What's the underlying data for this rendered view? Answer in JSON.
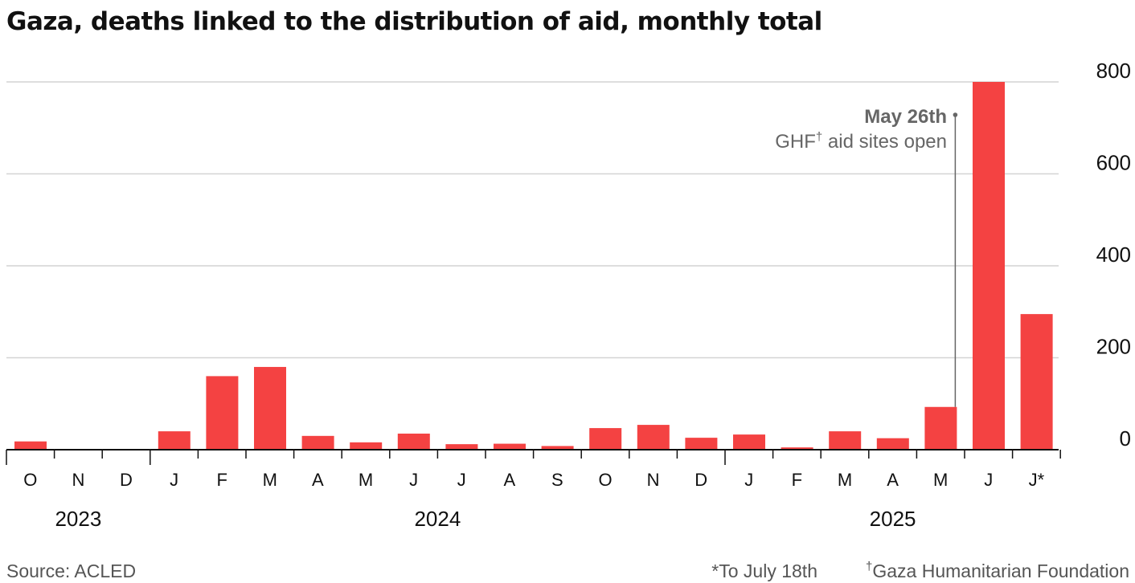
{
  "chart_data": {
    "type": "bar",
    "title": "Gaza, deaths linked to the distribution of aid, monthly total",
    "xlabel": "",
    "ylabel": "",
    "ylim": [
      0,
      800
    ],
    "yticks": [
      0,
      200,
      400,
      600,
      800
    ],
    "grid": true,
    "color": "#f44242",
    "categories": [
      "O",
      "N",
      "D",
      "J",
      "F",
      "M",
      "A",
      "M",
      "J",
      "J",
      "A",
      "S",
      "O",
      "N",
      "D",
      "J",
      "F",
      "M",
      "A",
      "M",
      "J",
      "J*"
    ],
    "values": [
      18,
      0,
      0,
      40,
      160,
      180,
      30,
      16,
      35,
      12,
      13,
      8,
      47,
      54,
      26,
      33,
      5,
      40,
      25,
      93,
      800,
      295
    ],
    "years": [
      {
        "label": "2023",
        "start": 0,
        "end": 2
      },
      {
        "label": "2024",
        "start": 3,
        "end": 14
      },
      {
        "label": "2025",
        "start": 15,
        "end": 21
      }
    ],
    "annotation": {
      "title": "May 26th",
      "text_pre": "GHF",
      "text_sup": "†",
      "text_post": " aid sites open",
      "category_index": 19,
      "value": 93
    },
    "source": "Source: ACLED",
    "footnote_1": "*To July 18th",
    "footnote_2_sup": "†",
    "footnote_2": "Gaza Humanitarian Foundation"
  }
}
